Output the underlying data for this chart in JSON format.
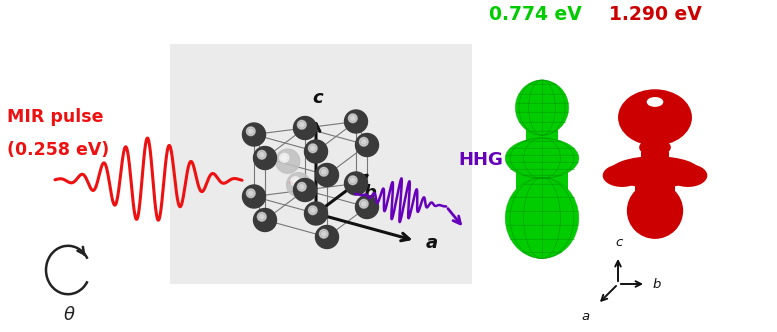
{
  "mir_label1": "MIR pulse",
  "mir_label2": "(0.258 eV)",
  "mir_color": "#ee1111",
  "hhg_label": "HHG",
  "hhg_color": "#6600bb",
  "theta_label": "θ",
  "green_label": "0.774 eV",
  "red_label": "1.290 eV",
  "green_color": "#00cc00",
  "red_color": "#cc0000",
  "bg_color": "#ffffff",
  "plane_color": "#e0e0e0",
  "atom_dark": "#3a3a3a",
  "atom_mid": "#787878",
  "atom_light": "#c0c0c0",
  "axis_color": "#111111",
  "grid_color": "#009900"
}
